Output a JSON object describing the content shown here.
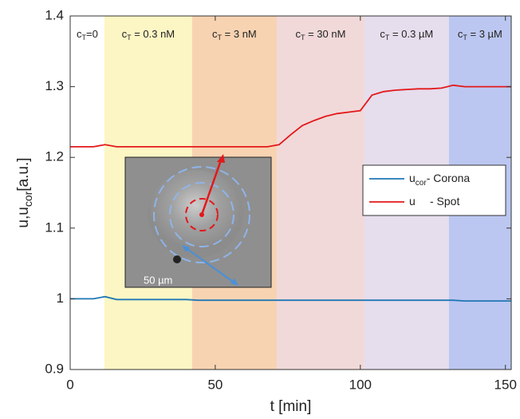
{
  "chart_data": {
    "type": "line",
    "x_label": "t [min]",
    "y_label": {
      "main": "u,u",
      "sub": "cor",
      "unit": "[a.u.]"
    },
    "xlim": [
      0,
      152
    ],
    "ylim": [
      0.9,
      1.4
    ],
    "xticks": [
      0,
      50,
      100,
      150
    ],
    "yticks": [
      0.9,
      1,
      1.1,
      1.2,
      1.3,
      1.4
    ],
    "regions": [
      {
        "symbol": "c",
        "sub": "T",
        "text": "=0",
        "start": 0,
        "end": 11.8,
        "color": "#ffffff"
      },
      {
        "symbol": "c",
        "sub": "T",
        "text": " = 0.3 nM",
        "start": 11.8,
        "end": 42,
        "color": "#fcf6c4"
      },
      {
        "symbol": "c",
        "sub": "T",
        "text": " = 3 nM",
        "start": 42,
        "end": 71.2,
        "color": "#f8d3b2"
      },
      {
        "symbol": "c",
        "sub": "T",
        "text": " = 30 nM",
        "start": 71.2,
        "end": 101.4,
        "color": "#f1d9d9"
      },
      {
        "symbol": "c",
        "sub": "T",
        "text": " = 0.3 µM",
        "start": 101.4,
        "end": 130.5,
        "color": "#e6dded"
      },
      {
        "symbol": "c",
        "sub": "T",
        "text": " = 3 µM",
        "start": 130.5,
        "end": 152,
        "color": "#bcc7f1"
      }
    ],
    "x": [
      0,
      4,
      8,
      12,
      16,
      20,
      24,
      28,
      32,
      36,
      40,
      44,
      48,
      52,
      56,
      60,
      64,
      68,
      72,
      76,
      80,
      84,
      88,
      92,
      96,
      100,
      104,
      108,
      112,
      116,
      120,
      124,
      128,
      132,
      136,
      140,
      144,
      148,
      152
    ],
    "series": [
      {
        "symbol": "u",
        "sub": "cor",
        "name": "- Corona",
        "color": "#1f77b4",
        "values": [
          1.0,
          1.0,
          1.0,
          1.003,
          0.999,
          0.999,
          0.999,
          0.999,
          0.999,
          0.999,
          0.999,
          0.998,
          0.998,
          0.998,
          0.998,
          0.998,
          0.998,
          0.998,
          0.998,
          0.998,
          0.998,
          0.998,
          0.998,
          0.998,
          0.998,
          0.998,
          0.998,
          0.998,
          0.998,
          0.998,
          0.998,
          0.998,
          0.998,
          0.998,
          0.997,
          0.997,
          0.997,
          0.997,
          0.997
        ]
      },
      {
        "symbol": "u",
        "name": "- Spot",
        "color": "#e3181a",
        "values": [
          1.215,
          1.215,
          1.215,
          1.218,
          1.215,
          1.215,
          1.215,
          1.215,
          1.215,
          1.215,
          1.215,
          1.215,
          1.215,
          1.215,
          1.215,
          1.215,
          1.215,
          1.215,
          1.218,
          1.232,
          1.245,
          1.252,
          1.258,
          1.262,
          1.264,
          1.266,
          1.288,
          1.293,
          1.295,
          1.296,
          1.297,
          1.297,
          1.298,
          1.302,
          1.3,
          1.3,
          1.3,
          1.3,
          1.3
        ]
      }
    ],
    "inset_label": "50 µm"
  }
}
